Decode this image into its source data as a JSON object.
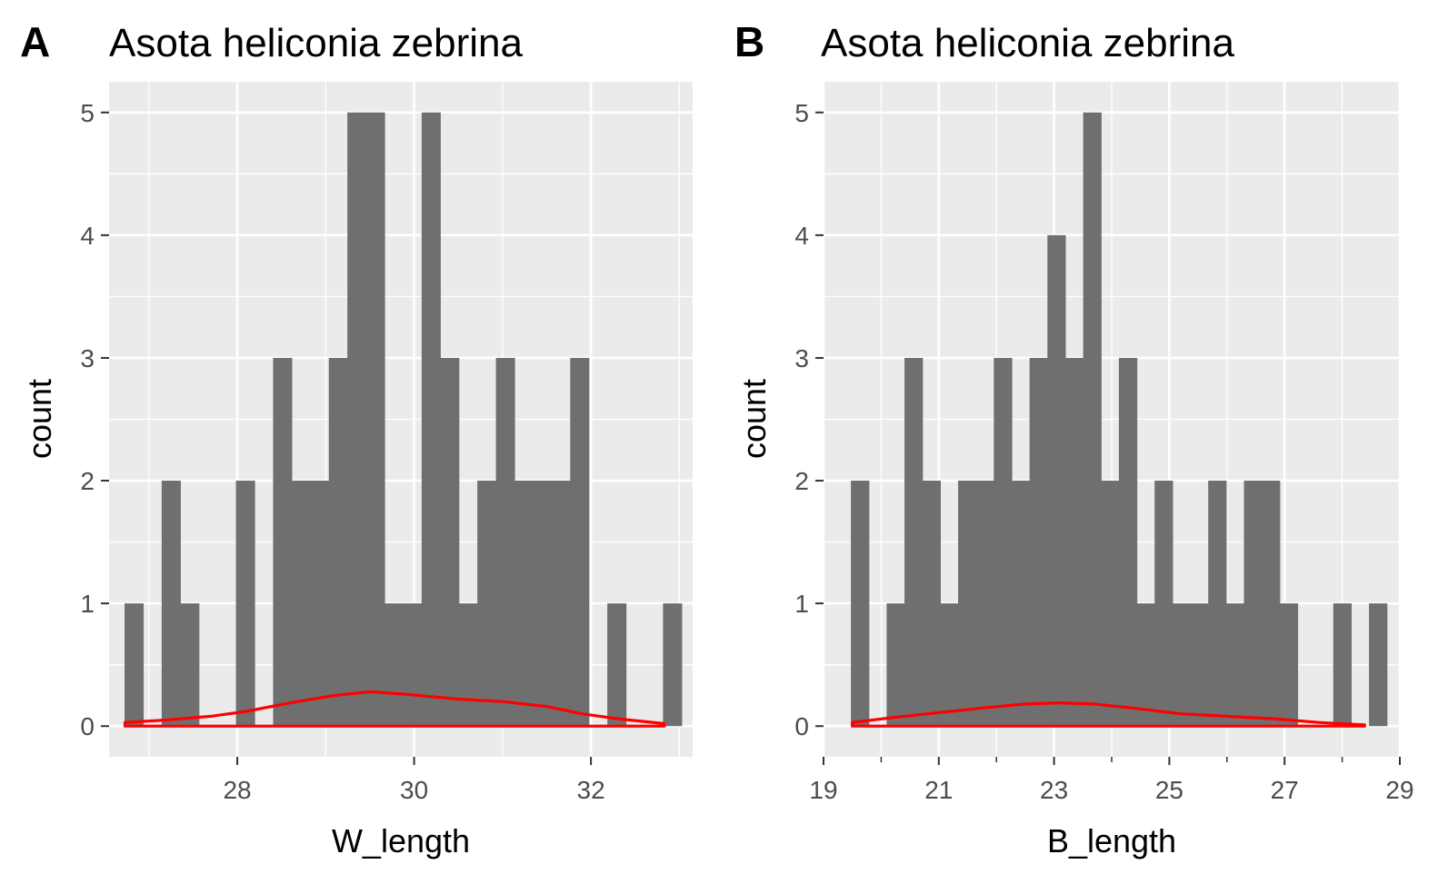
{
  "chart_data": [
    {
      "type": "bar",
      "panel_tag": "A",
      "title": "Asota heliconia zebrina",
      "xlabel": "W_length",
      "ylabel": "count",
      "xlim": [
        26.55,
        33.15
      ],
      "ylim": [
        -0.25,
        5.25
      ],
      "x_ticks": [
        28,
        30,
        32
      ],
      "y_ticks": [
        0,
        1,
        2,
        3,
        4,
        5
      ],
      "bar_color": "#6f6f6f",
      "density_color": "#ff0000",
      "panel_background": "#ebebeb",
      "grid": true,
      "bin_width": 0.21,
      "bins": [
        {
          "x": 26.83,
          "count": 1
        },
        {
          "x": 27.04,
          "count": 0
        },
        {
          "x": 27.25,
          "count": 2
        },
        {
          "x": 27.46,
          "count": 1
        },
        {
          "x": 27.67,
          "count": 0
        },
        {
          "x": 27.88,
          "count": 0
        },
        {
          "x": 28.09,
          "count": 2
        },
        {
          "x": 28.3,
          "count": 0
        },
        {
          "x": 28.51,
          "count": 3
        },
        {
          "x": 28.72,
          "count": 2
        },
        {
          "x": 28.93,
          "count": 2
        },
        {
          "x": 29.14,
          "count": 3
        },
        {
          "x": 29.35,
          "count": 5
        },
        {
          "x": 29.56,
          "count": 5
        },
        {
          "x": 29.77,
          "count": 1
        },
        {
          "x": 29.98,
          "count": 1
        },
        {
          "x": 30.19,
          "count": 5
        },
        {
          "x": 30.4,
          "count": 3
        },
        {
          "x": 30.61,
          "count": 1
        },
        {
          "x": 30.82,
          "count": 2
        },
        {
          "x": 31.03,
          "count": 3
        },
        {
          "x": 31.24,
          "count": 2
        },
        {
          "x": 31.45,
          "count": 2
        },
        {
          "x": 31.66,
          "count": 2
        },
        {
          "x": 31.87,
          "count": 3
        },
        {
          "x": 32.08,
          "count": 0
        },
        {
          "x": 32.29,
          "count": 1
        },
        {
          "x": 32.5,
          "count": 0
        },
        {
          "x": 32.71,
          "count": 0
        },
        {
          "x": 32.92,
          "count": 1
        }
      ],
      "density": [
        {
          "x": 26.73,
          "y": 0.03
        },
        {
          "x": 27.2,
          "y": 0.05
        },
        {
          "x": 27.7,
          "y": 0.08
        },
        {
          "x": 28.1,
          "y": 0.12
        },
        {
          "x": 28.6,
          "y": 0.19
        },
        {
          "x": 29.1,
          "y": 0.25
        },
        {
          "x": 29.5,
          "y": 0.28
        },
        {
          "x": 29.9,
          "y": 0.26
        },
        {
          "x": 30.5,
          "y": 0.22
        },
        {
          "x": 31.0,
          "y": 0.2
        },
        {
          "x": 31.5,
          "y": 0.16
        },
        {
          "x": 31.9,
          "y": 0.1
        },
        {
          "x": 32.3,
          "y": 0.06
        },
        {
          "x": 32.83,
          "y": 0.02
        }
      ]
    },
    {
      "type": "bar",
      "panel_tag": "B",
      "title": "Asota heliconia zebrina",
      "xlabel": "B_length",
      "ylabel": "count",
      "xlim": [
        19,
        29
      ],
      "ylim": [
        -0.25,
        5.25
      ],
      "x_ticks": [
        19,
        21,
        23,
        25,
        27,
        29
      ],
      "x_minor_ticks": [
        20,
        22,
        24,
        26,
        28
      ],
      "y_ticks": [
        0,
        1,
        2,
        3,
        4,
        5
      ],
      "bar_color": "#6f6f6f",
      "density_color": "#ff0000",
      "panel_background": "#ebebeb",
      "grid": true,
      "bin_width": 0.31,
      "bins": [
        {
          "x": 19.63,
          "count": 2
        },
        {
          "x": 19.94,
          "count": 0
        },
        {
          "x": 20.25,
          "count": 1
        },
        {
          "x": 20.56,
          "count": 3
        },
        {
          "x": 20.87,
          "count": 2
        },
        {
          "x": 21.18,
          "count": 1
        },
        {
          "x": 21.49,
          "count": 2
        },
        {
          "x": 21.8,
          "count": 2
        },
        {
          "x": 22.11,
          "count": 3
        },
        {
          "x": 22.42,
          "count": 2
        },
        {
          "x": 22.73,
          "count": 3
        },
        {
          "x": 23.04,
          "count": 4
        },
        {
          "x": 23.35,
          "count": 3
        },
        {
          "x": 23.66,
          "count": 5
        },
        {
          "x": 23.97,
          "count": 2
        },
        {
          "x": 24.28,
          "count": 3
        },
        {
          "x": 24.59,
          "count": 1
        },
        {
          "x": 24.9,
          "count": 2
        },
        {
          "x": 25.21,
          "count": 1
        },
        {
          "x": 25.52,
          "count": 1
        },
        {
          "x": 25.83,
          "count": 2
        },
        {
          "x": 26.14,
          "count": 1
        },
        {
          "x": 26.45,
          "count": 2
        },
        {
          "x": 26.76,
          "count": 2
        },
        {
          "x": 27.07,
          "count": 1
        },
        {
          "x": 27.38,
          "count": 0
        },
        {
          "x": 27.69,
          "count": 0
        },
        {
          "x": 28.0,
          "count": 1
        },
        {
          "x": 28.31,
          "count": 0
        },
        {
          "x": 28.62,
          "count": 1
        }
      ],
      "density": [
        {
          "x": 19.5,
          "y": 0.03
        },
        {
          "x": 20.2,
          "y": 0.07
        },
        {
          "x": 21.0,
          "y": 0.11
        },
        {
          "x": 21.8,
          "y": 0.15
        },
        {
          "x": 22.5,
          "y": 0.18
        },
        {
          "x": 23.1,
          "y": 0.19
        },
        {
          "x": 23.7,
          "y": 0.18
        },
        {
          "x": 24.5,
          "y": 0.14
        },
        {
          "x": 25.2,
          "y": 0.1
        },
        {
          "x": 26.0,
          "y": 0.08
        },
        {
          "x": 26.8,
          "y": 0.06
        },
        {
          "x": 27.6,
          "y": 0.03
        },
        {
          "x": 28.39,
          "y": 0.01
        }
      ]
    }
  ]
}
